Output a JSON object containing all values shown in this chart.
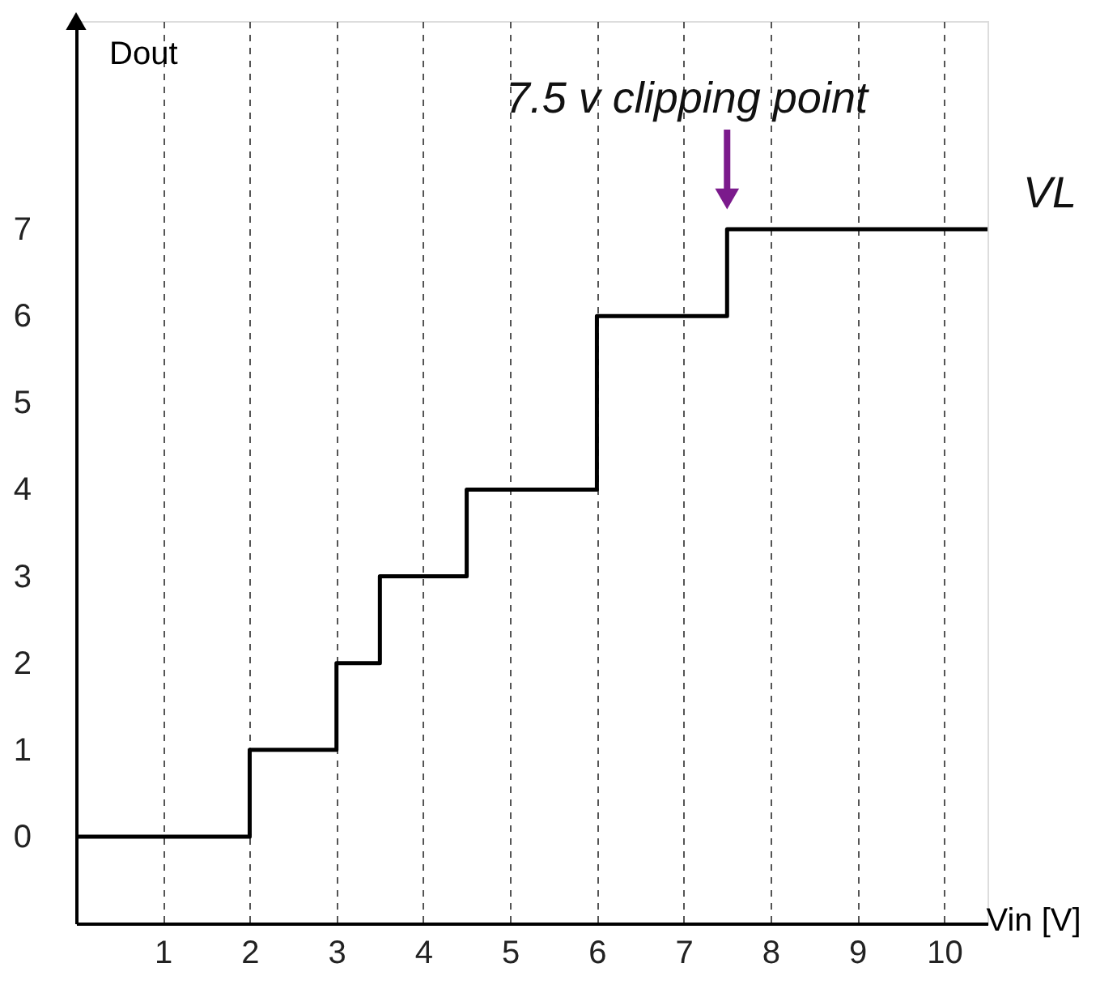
{
  "chart_data": {
    "type": "step",
    "x": [
      0,
      2,
      3,
      3.5,
      4.5,
      6,
      7.5,
      10.5
    ],
    "series": [
      {
        "color": "#000000",
        "values": [
          0,
          1,
          2,
          3,
          4,
          6,
          7,
          7
        ]
      }
    ],
    "xlim": [
      0,
      10.5
    ],
    "xticks": [
      1,
      2,
      3,
      4,
      5,
      6,
      7,
      8,
      9,
      10
    ],
    "ylim": [
      -1,
      9.4
    ],
    "yticks": [
      0,
      1,
      2,
      3,
      4,
      5,
      6,
      7
    ],
    "xlabel": "Vin [V]",
    "ylabel": "Dout",
    "grid": "x",
    "annotations": [
      {
        "text": "7.5 v clipping point",
        "x": 7.5,
        "y": 7
      },
      "VL"
    ]
  }
}
